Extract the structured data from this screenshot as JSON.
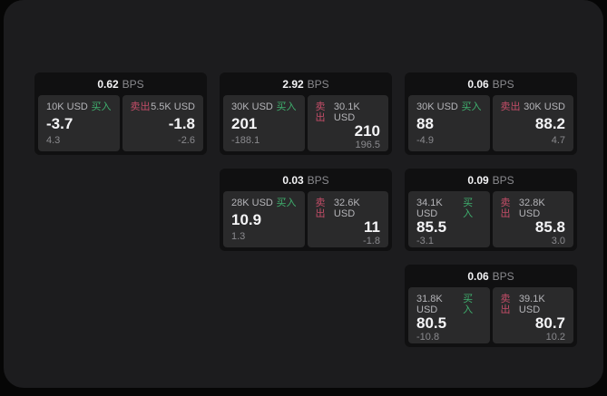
{
  "labels": {
    "bps": "BPS",
    "buy": "买入",
    "sell": "卖出"
  },
  "theme": {
    "buy_color": "#3fb06e",
    "sell_color": "#c44d68",
    "panel_bg": "#1c1c1e",
    "card_bg": "#101011",
    "tile_bg": "#2a2a2b"
  },
  "cards": [
    {
      "bps": "0.62",
      "buy": {
        "amount": "10K USD",
        "price": "-3.7",
        "delta": "4.3"
      },
      "sell": {
        "amount": "5.5K USD",
        "price": "-1.8",
        "delta": "-2.6"
      }
    },
    {
      "bps": "2.92",
      "buy": {
        "amount": "30K USD",
        "price": "201",
        "delta": "-188.1"
      },
      "sell": {
        "amount": "30.1K USD",
        "price": "210",
        "delta": "196.5"
      }
    },
    {
      "bps": "0.06",
      "buy": {
        "amount": "30K USD",
        "price": "88",
        "delta": "-4.9"
      },
      "sell": {
        "amount": "30K USD",
        "price": "88.2",
        "delta": "4.7"
      }
    },
    {
      "bps": "0.03",
      "buy": {
        "amount": "28K USD",
        "price": "10.9",
        "delta": "1.3"
      },
      "sell": {
        "amount": "32.6K USD",
        "price": "11",
        "delta": "-1.8"
      }
    },
    {
      "bps": "0.09",
      "buy": {
        "amount": "34.1K USD",
        "price": "85.5",
        "delta": "-3.1"
      },
      "sell": {
        "amount": "32.8K USD",
        "price": "85.8",
        "delta": "3.0"
      }
    },
    {
      "bps": "0.06",
      "buy": {
        "amount": "31.8K USD",
        "price": "80.5",
        "delta": "-10.8"
      },
      "sell": {
        "amount": "39.1K USD",
        "price": "80.7",
        "delta": "10.2"
      }
    }
  ]
}
